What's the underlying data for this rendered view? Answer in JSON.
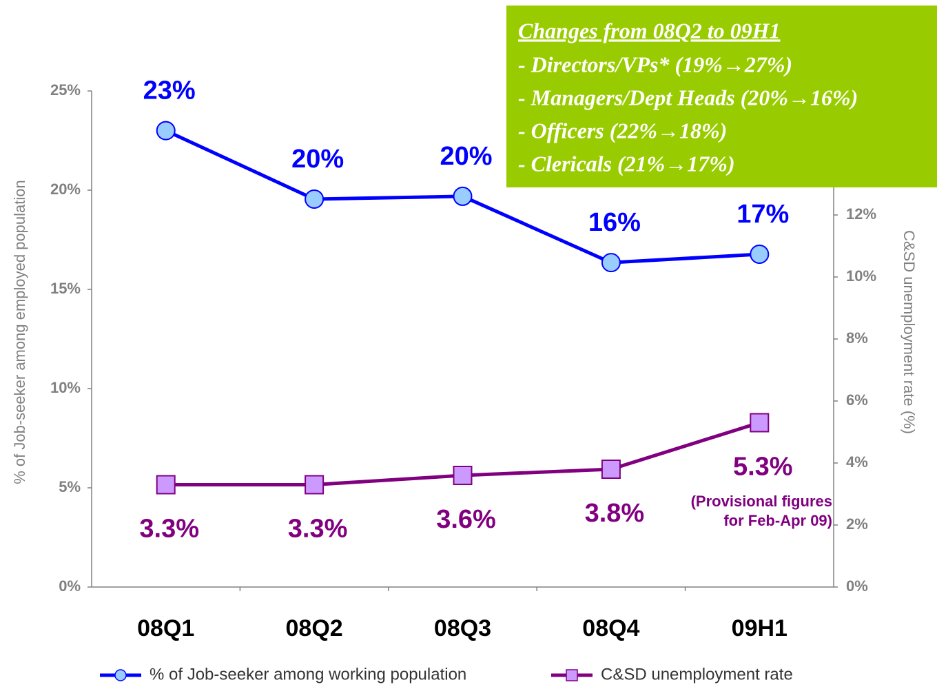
{
  "chart_data": {
    "type": "line",
    "categories": [
      "08Q1",
      "08Q2",
      "08Q3",
      "08Q4",
      "09H1"
    ],
    "series": [
      {
        "name": "% of Job-seeker among working population",
        "color": "#0000ff",
        "marker_color": "#99ccff",
        "marker": "circle",
        "values": [
          23,
          19.55,
          19.69,
          16.35,
          16.77
        ],
        "value_labels": [
          "23%",
          "20%",
          "20%",
          "16%",
          "17%"
        ]
      },
      {
        "name": "C&SD unemployment rate",
        "color": "#800080",
        "marker_color": "#cc99ff",
        "marker": "square",
        "axis": "y2",
        "values": [
          3.3,
          3.3,
          3.6,
          3.8,
          5.3
        ],
        "value_labels": [
          "3.3%",
          "3.3%",
          "3.6%",
          "3.8%",
          "5.3%"
        ]
      }
    ],
    "ylabel": "% of Job-seeker among employed population",
    "y2label": "C&SD unemployment rate (%)",
    "ylim": [
      0,
      25
    ],
    "yticks": [
      {
        "value": 0,
        "label": "0%"
      },
      {
        "value": 5,
        "label": "5%"
      },
      {
        "value": 10,
        "label": "10%"
      },
      {
        "value": 15,
        "label": "15%"
      },
      {
        "value": 20,
        "label": "20%"
      },
      {
        "value": 25,
        "label": "25%"
      }
    ],
    "y2lim": [
      0,
      16
    ],
    "y2ticks": [
      {
        "value": 0,
        "label": "0%"
      },
      {
        "value": 2,
        "label": "2%"
      },
      {
        "value": 4,
        "label": "4%"
      },
      {
        "value": 6,
        "label": "6%"
      },
      {
        "value": 8,
        "label": "8%"
      },
      {
        "value": 10,
        "label": "10%"
      },
      {
        "value": 12,
        "label": "12%"
      }
    ],
    "annotation": [
      "(Provisional figures",
      "for Feb-Apr 09)"
    ],
    "callout": {
      "title": "Changes from 08Q2 to 09H1",
      "lines": [
        "- Directors/VPs* (19%→27%)",
        "- Managers/Dept Heads (20%→16%)",
        "- Officers (22%→18%)",
        "- Clericals (21%→17%)"
      ],
      "color": "#99cc00"
    }
  }
}
